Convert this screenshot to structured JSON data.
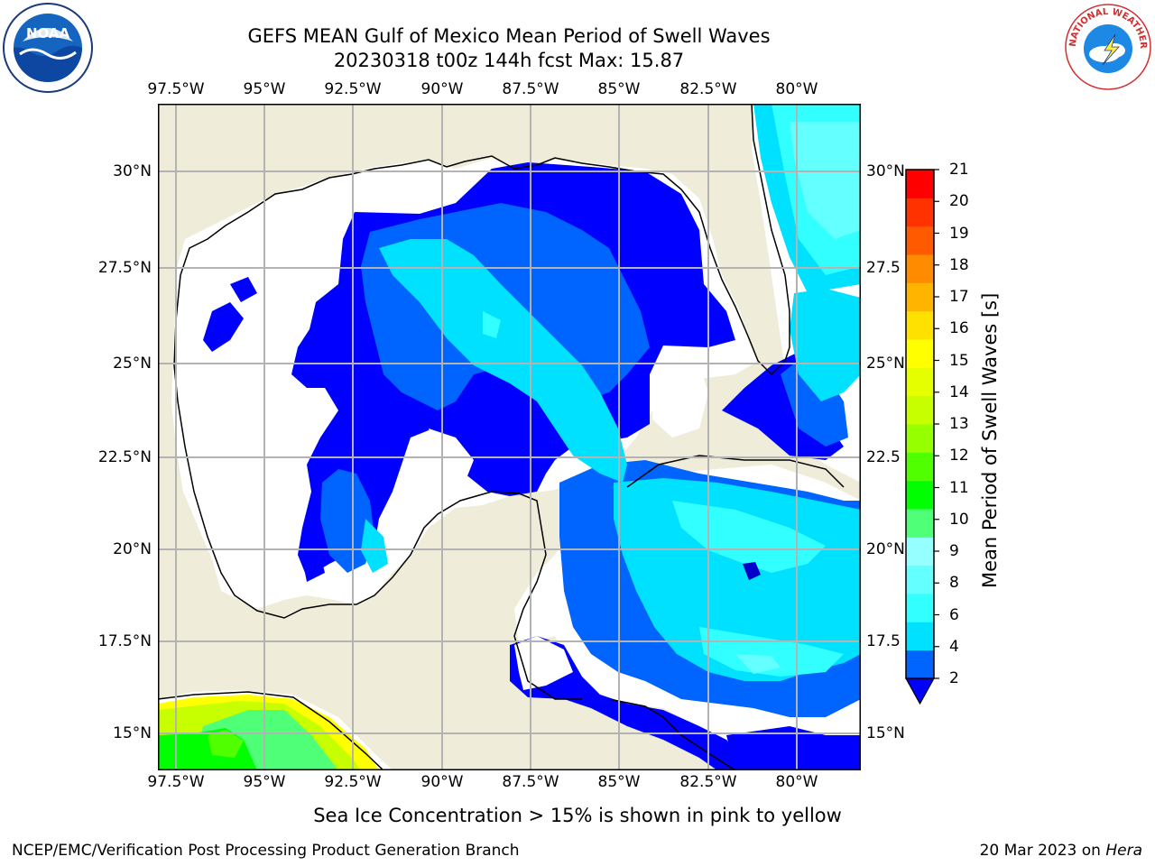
{
  "title": {
    "line1": "GEFS MEAN Gulf of Mexico Mean Period of Swell Waves",
    "line2": "20230318 t00z 144h fcst   Max: 15.87"
  },
  "logos": {
    "left": "NOAA",
    "right": "NATIONAL WEATHER SERVICE"
  },
  "map": {
    "lon_labels": [
      "97.5°W",
      "95°W",
      "92.5°W",
      "90°W",
      "87.5°W",
      "85°W",
      "82.5°W",
      "80°W"
    ],
    "lat_labels": [
      "30°N",
      "27.5°N",
      "25°N",
      "22.5°N",
      "20°N",
      "17.5°N",
      "15°N"
    ],
    "lat_labels_right": [
      "30°N",
      "27.5",
      "25°N",
      "22.5",
      "20°N",
      "17.5",
      "15°N"
    ],
    "colors": {
      "land": "#efedd9",
      "ocean_nodata": "#ffffff",
      "grid": "#b3b3b3",
      "coast": "#000000"
    }
  },
  "colorbar": {
    "label": "Mean Period of Swell Waves [s]",
    "ticks": [
      "21",
      "20",
      "19",
      "18",
      "17",
      "16",
      "15",
      "14",
      "13",
      "12",
      "11",
      "10",
      "9",
      "8",
      "6",
      "4",
      "2"
    ],
    "colors": [
      "#0000ff",
      "#0064ff",
      "#00e1ff",
      "#32ffff",
      "#64ffff",
      "#96ffff",
      "#50ff78",
      "#00ff00",
      "#50ff00",
      "#96ff00",
      "#c8ff00",
      "#e6ff00",
      "#ffff00",
      "#ffe100",
      "#ffb400",
      "#ff8c00",
      "#ff5a00",
      "#ff3200",
      "#ff0000"
    ]
  },
  "note": "Sea Ice Concentration > 15% is shown in pink to yellow",
  "footer": {
    "left": "NCEP/EMC/Verification Post Processing Product Generation Branch",
    "right_prefix": "20 Mar 2023 on ",
    "right_host": "Hera"
  }
}
